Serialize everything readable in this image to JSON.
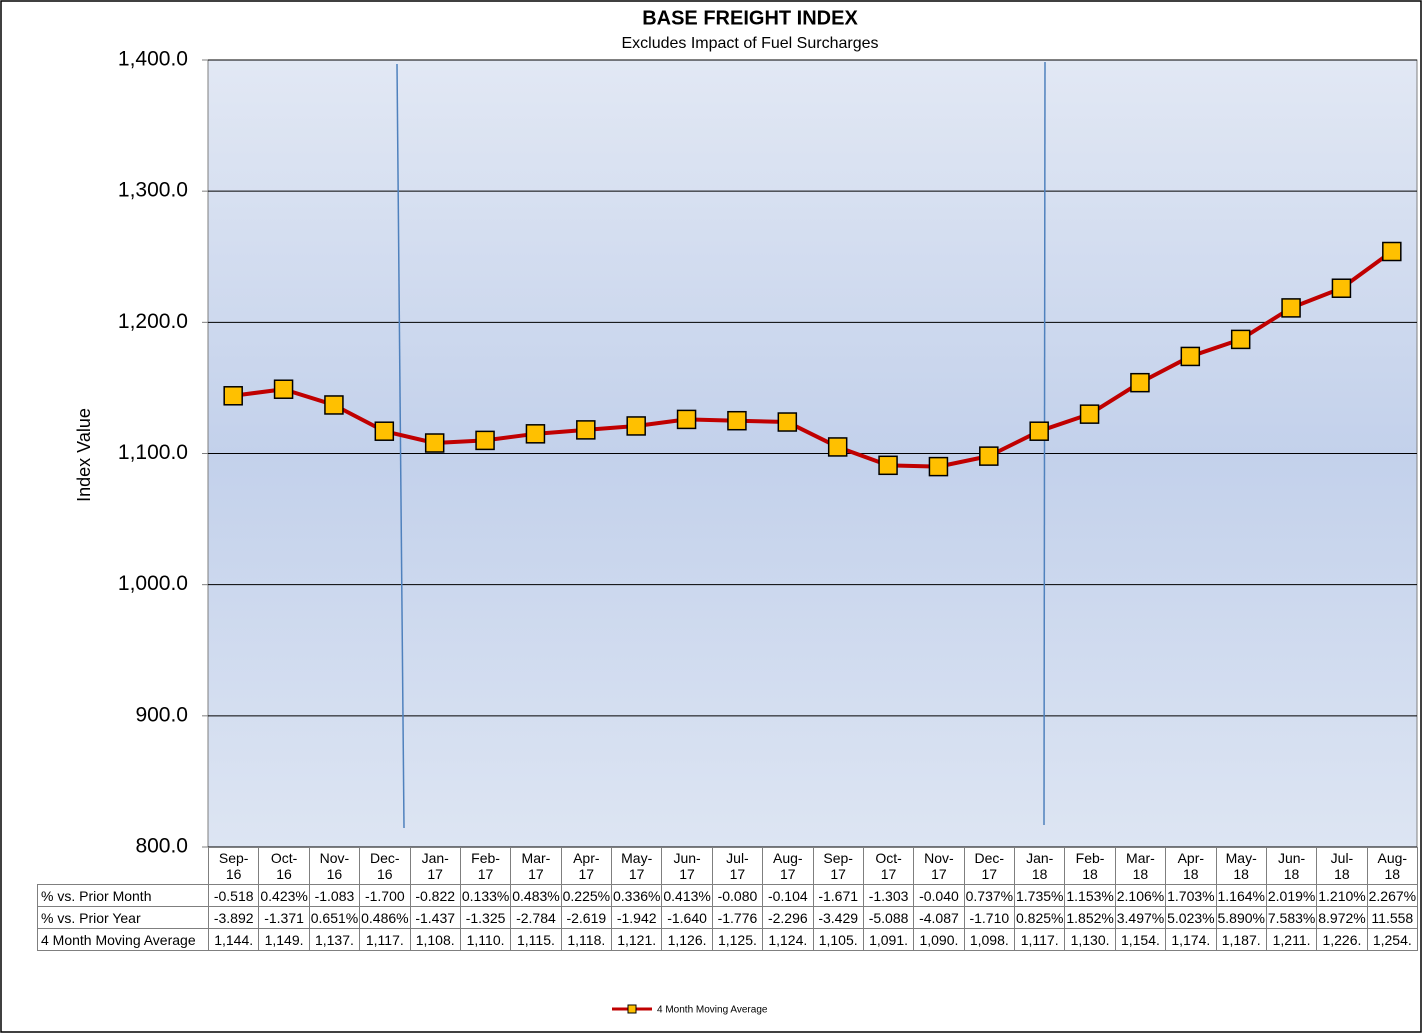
{
  "chart_data": {
    "type": "line",
    "title": "BASE FREIGHT INDEX",
    "subtitle": "Excludes Impact of Fuel Surcharges",
    "y_label": "Index Value",
    "categories": [
      "Sep-16",
      "Oct-16",
      "Nov-16",
      "Dec-16",
      "Jan-17",
      "Feb-17",
      "Mar-17",
      "Apr-17",
      "May-17",
      "Jun-17",
      "Jul-17",
      "Aug-17",
      "Sep-17",
      "Oct-17",
      "Nov-17",
      "Dec-17",
      "Jan-18",
      "Feb-18",
      "Mar-18",
      "Apr-18",
      "May-18",
      "Jun-18",
      "Jul-18",
      "Aug-18"
    ],
    "series": [
      {
        "name": "4 Month Moving Average",
        "color": "#c00000",
        "marker_color": "#ffc000",
        "values": [
          1144,
          1149,
          1137,
          1117,
          1108,
          1110,
          1115,
          1118,
          1121,
          1126,
          1125,
          1124,
          1105,
          1091,
          1090,
          1098,
          1117,
          1130,
          1154,
          1174,
          1187,
          1211,
          1226,
          1254
        ],
        "value_labels": [
          "1,144.",
          "1,149.",
          "1,137.",
          "1,117.",
          "1,108.",
          "1,110.",
          "1,115.",
          "1,118.",
          "1,121.",
          "1,126.",
          "1,125.",
          "1,124.",
          "1,105.",
          "1,091.",
          "1,090.",
          "1,098.",
          "1,117.",
          "1,130.",
          "1,154.",
          "1,174.",
          "1,187.",
          "1,211.",
          "1,226.",
          "1,254."
        ]
      }
    ],
    "ylim": [
      800,
      1400
    ],
    "yticks": [
      {
        "value": 800,
        "label": "800.0"
      },
      {
        "value": 900,
        "label": "900.0"
      },
      {
        "value": 1000,
        "label": "1,000.0"
      },
      {
        "value": 1100,
        "label": "1,100.0"
      },
      {
        "value": 1200,
        "label": "1,200.0"
      },
      {
        "value": 1300,
        "label": "1,300.0"
      },
      {
        "value": 1400,
        "label": "1,400.0"
      }
    ],
    "grid": true,
    "legend": "bottom",
    "table": [
      {
        "name": "% vs. Prior Month",
        "cells": [
          "-0.518",
          "0.423%",
          "-1.083",
          "-1.700",
          "-0.822",
          "0.133%",
          "0.483%",
          "0.225%",
          "0.336%",
          "0.413%",
          "-0.080",
          "-0.104",
          "-1.671",
          "-1.303",
          "-0.040",
          "0.737%",
          "1.735%",
          "1.153%",
          "2.106%",
          "1.703%",
          "1.164%",
          "2.019%",
          "1.210%",
          "2.267%"
        ]
      },
      {
        "name": "% vs. Prior Year",
        "cells": [
          "-3.892",
          "-1.371",
          "0.651%",
          "0.486%",
          "-1.437",
          "-1.325",
          "-2.784",
          "-2.619",
          "-1.942",
          "-1.640",
          "-1.776",
          "-2.296",
          "-3.429",
          "-5.088",
          "-4.087",
          "-1.710",
          "0.825%",
          "1.852%",
          "3.497%",
          "5.023%",
          "5.890%",
          "7.583%",
          "8.972%",
          "11.558"
        ]
      }
    ]
  }
}
